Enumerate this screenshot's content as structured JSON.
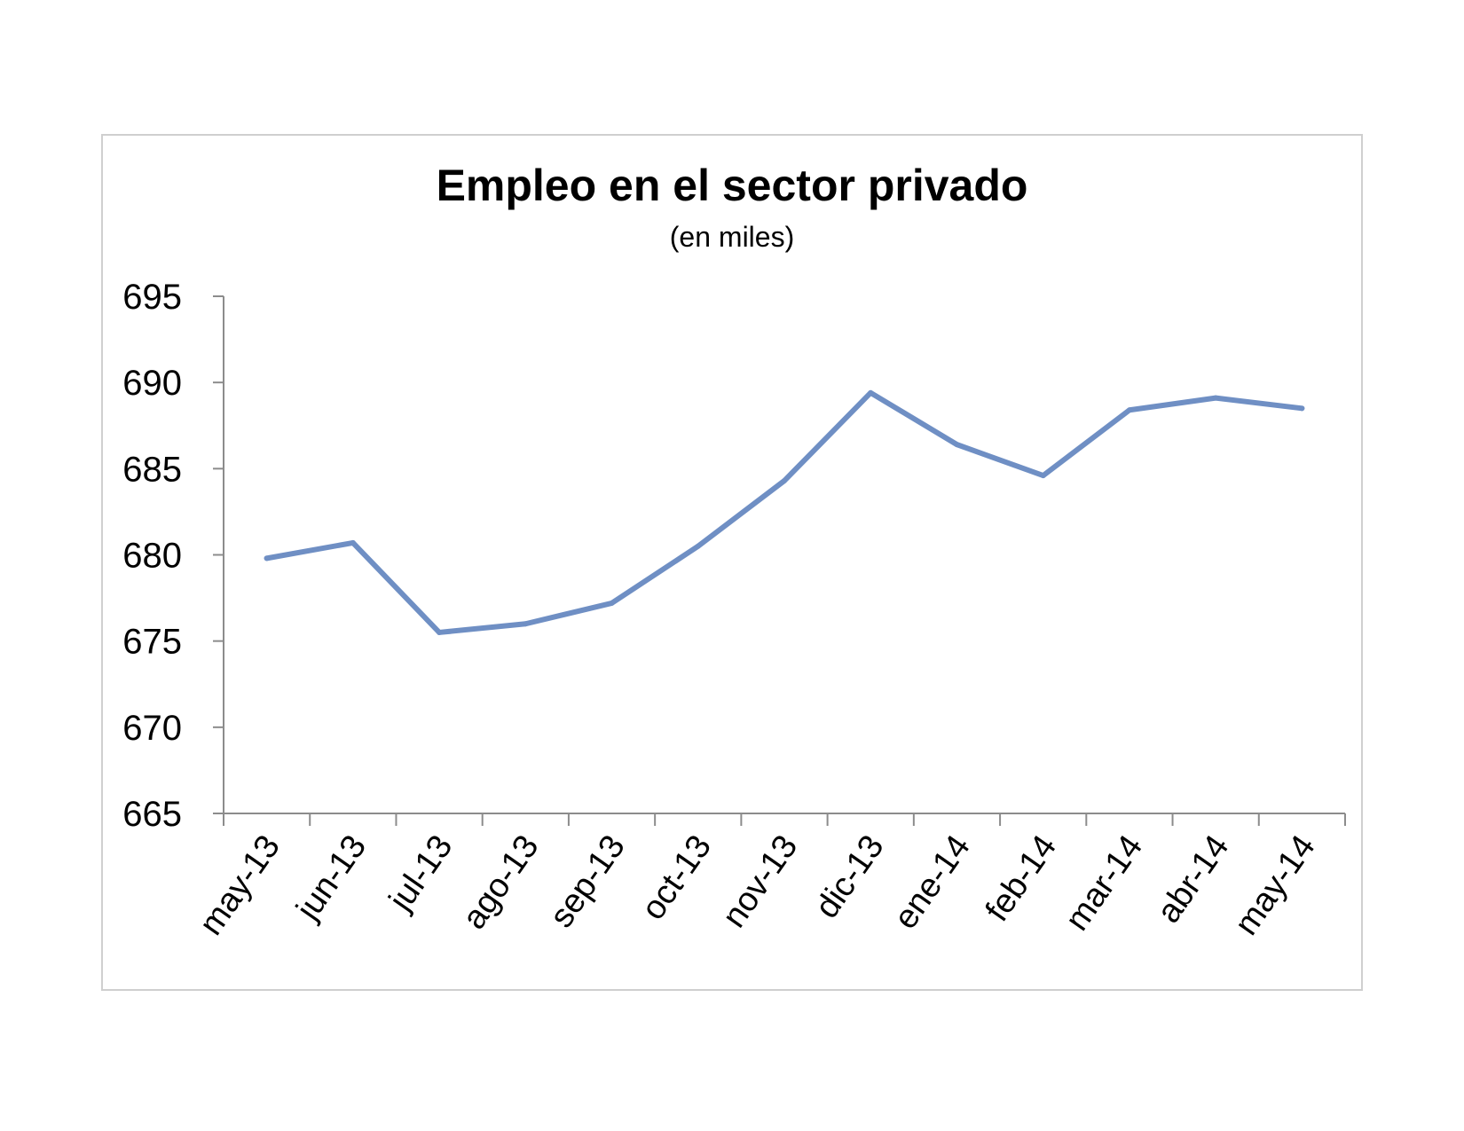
{
  "chart_data": {
    "type": "line",
    "title": "Empleo en el sector privado",
    "subtitle": "(en miles)",
    "xlabel": "",
    "ylabel": "",
    "categories": [
      "may-13",
      "jun-13",
      "jul-13",
      "ago-13",
      "sep-13",
      "oct-13",
      "nov-13",
      "dic-13",
      "ene-14",
      "feb-14",
      "mar-14",
      "abr-14",
      "may-14"
    ],
    "series": [
      {
        "values": [
          679.8,
          680.7,
          675.5,
          676.0,
          677.2,
          680.5,
          684.3,
          689.4,
          686.4,
          684.6,
          688.4,
          689.1,
          688.5
        ]
      }
    ],
    "ylim": [
      665,
      695
    ],
    "yticks": [
      665,
      670,
      675,
      680,
      685,
      690,
      695
    ],
    "grid": false,
    "legend": "none",
    "line_color": "#6f8fc4",
    "axis_color": "#8c8c8c"
  }
}
